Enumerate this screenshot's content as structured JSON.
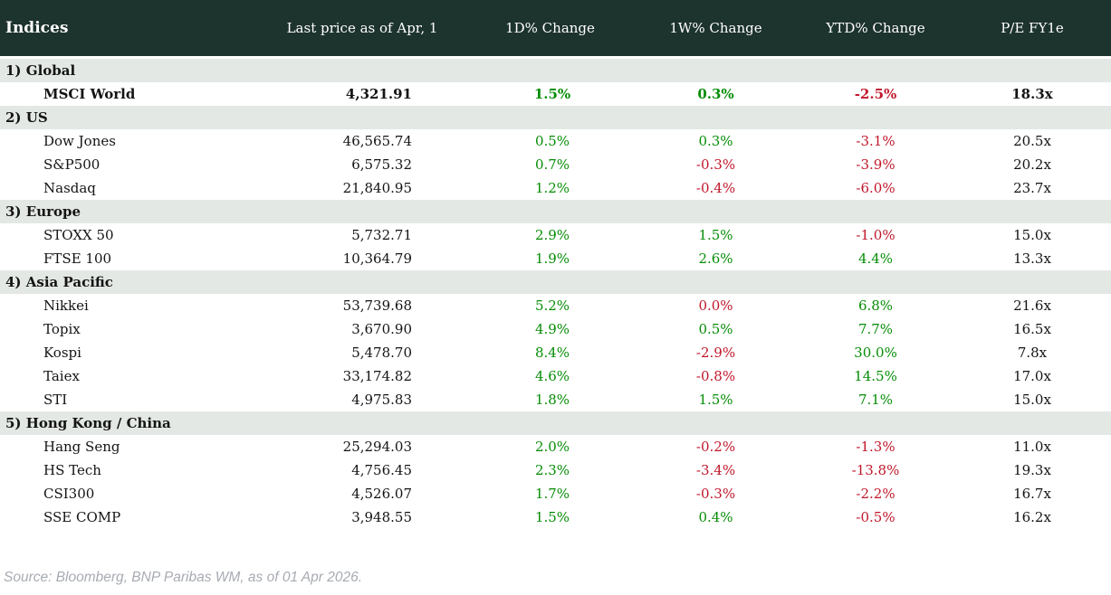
{
  "table": {
    "title": "Indices",
    "columns": {
      "price": "Last price as of Apr, 1",
      "chg_1d": "1D% Change",
      "chg_1w": "1W% Change",
      "chg_ytd": "YTD% Change",
      "pe": "P/E FY1e"
    },
    "sections": [
      {
        "label": "1) Global",
        "rows": [
          {
            "name": "MSCI World",
            "bold": true,
            "price": "4,321.91",
            "chg_1d": {
              "v": "1.5%",
              "s": "pos"
            },
            "chg_1w": {
              "v": "0.3%",
              "s": "pos"
            },
            "chg_ytd": {
              "v": "-2.5%",
              "s": "neg"
            },
            "pe": "18.3x"
          }
        ]
      },
      {
        "label": "2) US",
        "rows": [
          {
            "name": "Dow Jones",
            "bold": false,
            "price": "46,565.74",
            "chg_1d": {
              "v": "0.5%",
              "s": "pos"
            },
            "chg_1w": {
              "v": "0.3%",
              "s": "pos"
            },
            "chg_ytd": {
              "v": "-3.1%",
              "s": "neg"
            },
            "pe": "20.5x"
          },
          {
            "name": "S&P500",
            "bold": false,
            "price": "6,575.32",
            "chg_1d": {
              "v": "0.7%",
              "s": "pos"
            },
            "chg_1w": {
              "v": "-0.3%",
              "s": "neg"
            },
            "chg_ytd": {
              "v": "-3.9%",
              "s": "neg"
            },
            "pe": "20.2x"
          },
          {
            "name": "Nasdaq",
            "bold": false,
            "price": "21,840.95",
            "chg_1d": {
              "v": "1.2%",
              "s": "pos"
            },
            "chg_1w": {
              "v": "-0.4%",
              "s": "neg"
            },
            "chg_ytd": {
              "v": "-6.0%",
              "s": "neg"
            },
            "pe": "23.7x"
          }
        ]
      },
      {
        "label": "3) Europe",
        "rows": [
          {
            "name": "STOXX 50",
            "bold": false,
            "price": "5,732.71",
            "chg_1d": {
              "v": "2.9%",
              "s": "pos"
            },
            "chg_1w": {
              "v": "1.5%",
              "s": "pos"
            },
            "chg_ytd": {
              "v": "-1.0%",
              "s": "neg"
            },
            "pe": "15.0x"
          },
          {
            "name": "FTSE 100",
            "bold": false,
            "price": "10,364.79",
            "chg_1d": {
              "v": "1.9%",
              "s": "pos"
            },
            "chg_1w": {
              "v": "2.6%",
              "s": "pos"
            },
            "chg_ytd": {
              "v": "4.4%",
              "s": "pos"
            },
            "pe": "13.3x"
          }
        ]
      },
      {
        "label": "4) Asia Pacific",
        "rows": [
          {
            "name": "Nikkei",
            "bold": false,
            "price": "53,739.68",
            "chg_1d": {
              "v": "5.2%",
              "s": "pos"
            },
            "chg_1w": {
              "v": "0.0%",
              "s": "neg"
            },
            "chg_ytd": {
              "v": "6.8%",
              "s": "pos"
            },
            "pe": "21.6x"
          },
          {
            "name": "Topix",
            "bold": false,
            "price": "3,670.90",
            "chg_1d": {
              "v": "4.9%",
              "s": "pos"
            },
            "chg_1w": {
              "v": "0.5%",
              "s": "pos"
            },
            "chg_ytd": {
              "v": "7.7%",
              "s": "pos"
            },
            "pe": "16.5x"
          },
          {
            "name": "Kospi",
            "bold": false,
            "price": "5,478.70",
            "chg_1d": {
              "v": "8.4%",
              "s": "pos"
            },
            "chg_1w": {
              "v": "-2.9%",
              "s": "neg"
            },
            "chg_ytd": {
              "v": "30.0%",
              "s": "pos"
            },
            "pe": "7.8x"
          },
          {
            "name": "Taiex",
            "bold": false,
            "price": "33,174.82",
            "chg_1d": {
              "v": "4.6%",
              "s": "pos"
            },
            "chg_1w": {
              "v": "-0.8%",
              "s": "neg"
            },
            "chg_ytd": {
              "v": "14.5%",
              "s": "pos"
            },
            "pe": "17.0x"
          },
          {
            "name": "STI",
            "bold": false,
            "price": "4,975.83",
            "chg_1d": {
              "v": "1.8%",
              "s": "pos"
            },
            "chg_1w": {
              "v": "1.5%",
              "s": "pos"
            },
            "chg_ytd": {
              "v": "7.1%",
              "s": "pos"
            },
            "pe": "15.0x"
          }
        ]
      },
      {
        "label": "5) Hong Kong / China",
        "rows": [
          {
            "name": "Hang Seng",
            "bold": false,
            "price": "25,294.03",
            "chg_1d": {
              "v": "2.0%",
              "s": "pos"
            },
            "chg_1w": {
              "v": "-0.2%",
              "s": "neg"
            },
            "chg_ytd": {
              "v": "-1.3%",
              "s": "neg"
            },
            "pe": "11.0x"
          },
          {
            "name": "HS Tech",
            "bold": false,
            "price": "4,756.45",
            "chg_1d": {
              "v": "2.3%",
              "s": "pos"
            },
            "chg_1w": {
              "v": "-3.4%",
              "s": "neg"
            },
            "chg_ytd": {
              "v": "-13.8%",
              "s": "neg"
            },
            "pe": "19.3x"
          },
          {
            "name": "CSI300",
            "bold": false,
            "price": "4,526.07",
            "chg_1d": {
              "v": "1.7%",
              "s": "pos"
            },
            "chg_1w": {
              "v": "-0.3%",
              "s": "neg"
            },
            "chg_ytd": {
              "v": "-2.2%",
              "s": "neg"
            },
            "pe": "16.7x"
          },
          {
            "name": "SSE COMP",
            "bold": false,
            "price": "3,948.55",
            "chg_1d": {
              "v": "1.5%",
              "s": "pos"
            },
            "chg_1w": {
              "v": "0.4%",
              "s": "pos"
            },
            "chg_ytd": {
              "v": "-0.5%",
              "s": "neg"
            },
            "pe": "16.2x"
          }
        ]
      }
    ]
  },
  "footer": {
    "source": "Source: Bloomberg, BNP Paribas WM, as of 01 Apr 2026."
  },
  "colors": {
    "header_bg": "#1d332d",
    "section_bg": "#e3e8e4",
    "positive": "#068d06",
    "negative": "#c0182b",
    "footer_text": "#a7abb2"
  },
  "chart_data": {
    "type": "table",
    "title": "Indices",
    "columns": [
      "Index",
      "Last price as of Apr, 1",
      "1D% Change",
      "1W% Change",
      "YTD% Change",
      "P/E FY1e"
    ],
    "groups": [
      {
        "group": "1) Global",
        "rows": [
          [
            "MSCI World",
            4321.91,
            1.5,
            0.3,
            -2.5,
            "18.3x"
          ]
        ]
      },
      {
        "group": "2) US",
        "rows": [
          [
            "Dow Jones",
            46565.74,
            0.5,
            0.3,
            -3.1,
            "20.5x"
          ],
          [
            "S&P500",
            6575.32,
            0.7,
            -0.3,
            -3.9,
            "20.2x"
          ],
          [
            "Nasdaq",
            21840.95,
            1.2,
            -0.4,
            -6.0,
            "23.7x"
          ]
        ]
      },
      {
        "group": "3) Europe",
        "rows": [
          [
            "STOXX 50",
            5732.71,
            2.9,
            1.5,
            -1.0,
            "15.0x"
          ],
          [
            "FTSE 100",
            10364.79,
            1.9,
            2.6,
            4.4,
            "13.3x"
          ]
        ]
      },
      {
        "group": "4) Asia Pacific",
        "rows": [
          [
            "Nikkei",
            53739.68,
            5.2,
            0.0,
            6.8,
            "21.6x"
          ],
          [
            "Topix",
            3670.9,
            4.9,
            0.5,
            7.7,
            "16.5x"
          ],
          [
            "Kospi",
            5478.7,
            8.4,
            -2.9,
            30.0,
            "7.8x"
          ],
          [
            "Taiex",
            33174.82,
            4.6,
            -0.8,
            14.5,
            "17.0x"
          ],
          [
            "STI",
            4975.83,
            1.8,
            1.5,
            7.1,
            "15.0x"
          ]
        ]
      },
      {
        "group": "5) Hong Kong / China",
        "rows": [
          [
            "Hang Seng",
            25294.03,
            2.0,
            -0.2,
            -1.3,
            "11.0x"
          ],
          [
            "HS Tech",
            4756.45,
            2.3,
            -3.4,
            -13.8,
            "19.3x"
          ],
          [
            "CSI300",
            4526.07,
            1.7,
            -0.3,
            -2.2,
            "16.7x"
          ],
          [
            "SSE COMP",
            3948.55,
            1.5,
            0.4,
            -0.5,
            "16.2x"
          ]
        ]
      }
    ],
    "source_note": "Source: Bloomberg, BNP Paribas WM, as of 01 Apr 2026."
  }
}
